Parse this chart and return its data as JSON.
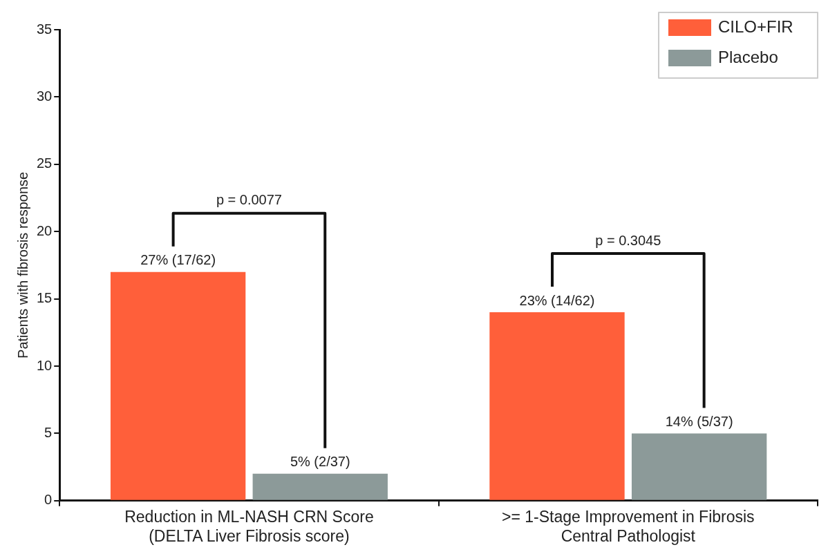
{
  "chart_data": {
    "type": "bar",
    "ylabel": "Patients with fibrosis response",
    "categories": [
      "Reduction in ML-NASH CRN Score\n(DELTA Liver Fibrosis score)",
      ">= 1-Stage Improvement in Fibrosis\nCentral Pathologist"
    ],
    "series": [
      {
        "name": "CILO+FIR",
        "color": "#ff5f3a",
        "values": [
          17,
          14
        ],
        "value_labels": [
          "27% (17/62)",
          "23% (14/62)"
        ]
      },
      {
        "name": "Placebo",
        "color": "#8c9a99",
        "values": [
          2,
          5
        ],
        "value_labels": [
          "5% (2/37)",
          "14% (5/37)"
        ]
      }
    ],
    "ylim": [
      0,
      35
    ],
    "yticks": [
      0,
      5,
      10,
      15,
      20,
      25,
      30,
      35
    ],
    "grid": false,
    "legend": "top right",
    "annotations": [
      "p = 0.0077",
      "p = 0.3045"
    ]
  }
}
